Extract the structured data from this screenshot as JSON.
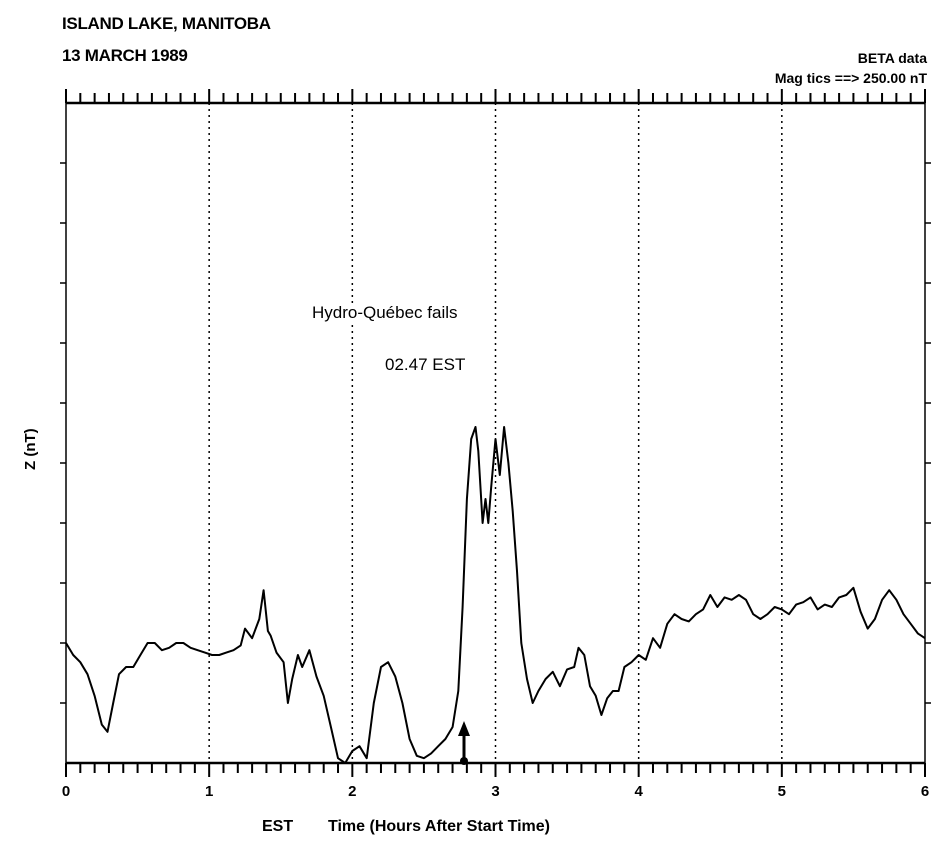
{
  "header": {
    "location": "ISLAND LAKE, MANITOBA",
    "date": "13 MARCH 1989",
    "source": "BETA data",
    "scale": "Mag tics ==> 250.00 nT"
  },
  "annotation": {
    "line1": "Hydro-Québec fails",
    "line2": "02.47 EST"
  },
  "axis": {
    "timezone": "EST",
    "xlabel": "Time (Hours After Start Time)",
    "ylabel": "Z (nT)"
  },
  "chart_data": {
    "type": "line",
    "xlim": [
      0,
      6
    ],
    "ylim": [
      0,
      2750
    ],
    "xticks": [
      0,
      1,
      2,
      3,
      4,
      5,
      6
    ],
    "xtick_labels": [
      "0",
      "1",
      "2",
      "3",
      "4",
      "5",
      "6"
    ],
    "minor_xtick_step": 0.1,
    "ytick_step": 250,
    "vertical_dotted_lines": [
      1,
      2,
      3,
      4,
      5
    ],
    "event_marker_x": 2.78,
    "series": [
      {
        "x": [
          0,
          0.05,
          0.1,
          0.15,
          0.2,
          0.25,
          0.29,
          0.33,
          0.37,
          0.42,
          0.47,
          0.52,
          0.57,
          0.62,
          0.67,
          0.72,
          0.77,
          0.82,
          0.87,
          0.92,
          0.97,
          1.02,
          1.07,
          1.12,
          1.17,
          1.22,
          1.25,
          1.3,
          1.35,
          1.38,
          1.41,
          1.43,
          1.47,
          1.52,
          1.55,
          1.58,
          1.62,
          1.65,
          1.7,
          1.75,
          1.8,
          1.85,
          1.9,
          1.95,
          2.0,
          2.05,
          2.1,
          2.15,
          2.2,
          2.25,
          2.3,
          2.35,
          2.4,
          2.45,
          2.5,
          2.55,
          2.6,
          2.65,
          2.7,
          2.74,
          2.77,
          2.8,
          2.83,
          2.86,
          2.88,
          2.91,
          2.93,
          2.95,
          2.97,
          3.0,
          3.03,
          3.06,
          3.09,
          3.12,
          3.15,
          3.18,
          3.22,
          3.26,
          3.3,
          3.35,
          3.4,
          3.45,
          3.5,
          3.55,
          3.58,
          3.62,
          3.66,
          3.7,
          3.74,
          3.78,
          3.82,
          3.86,
          3.9,
          3.95,
          4.0,
          4.05,
          4.1,
          4.15,
          4.2,
          4.25,
          4.3,
          4.35,
          4.4,
          4.45,
          4.5,
          4.55,
          4.6,
          4.65,
          4.7,
          4.75,
          4.8,
          4.85,
          4.9,
          4.95,
          5.0,
          5.05,
          5.1,
          5.15,
          5.2,
          5.25,
          5.3,
          5.35,
          5.4,
          5.45,
          5.5,
          5.55,
          5.6,
          5.65,
          5.7,
          5.75,
          5.8,
          5.85,
          5.9,
          5.95,
          6.0
        ],
        "y": [
          500,
          450,
          420,
          370,
          280,
          160,
          130,
          250,
          370,
          400,
          400,
          450,
          500,
          500,
          470,
          480,
          500,
          500,
          480,
          470,
          460,
          450,
          450,
          460,
          470,
          490,
          560,
          520,
          600,
          720,
          550,
          530,
          460,
          420,
          250,
          350,
          450,
          400,
          470,
          360,
          280,
          150,
          20,
          0,
          50,
          70,
          20,
          250,
          400,
          420,
          360,
          250,
          100,
          30,
          20,
          40,
          70,
          100,
          150,
          300,
          650,
          1100,
          1350,
          1400,
          1300,
          1000,
          1100,
          1000,
          1150,
          1350,
          1200,
          1400,
          1250,
          1050,
          800,
          500,
          350,
          250,
          300,
          350,
          380,
          320,
          390,
          400,
          480,
          450,
          320,
          280,
          200,
          270,
          300,
          300,
          400,
          420,
          450,
          430,
          520,
          480,
          580,
          620,
          600,
          590,
          620,
          640,
          700,
          650,
          690,
          680,
          700,
          680,
          620,
          600,
          620,
          650,
          640,
          620,
          660,
          670,
          690,
          640,
          660,
          650,
          690,
          700,
          730,
          630,
          560,
          600,
          680,
          720,
          680,
          620,
          580,
          540,
          520
        ]
      }
    ]
  }
}
